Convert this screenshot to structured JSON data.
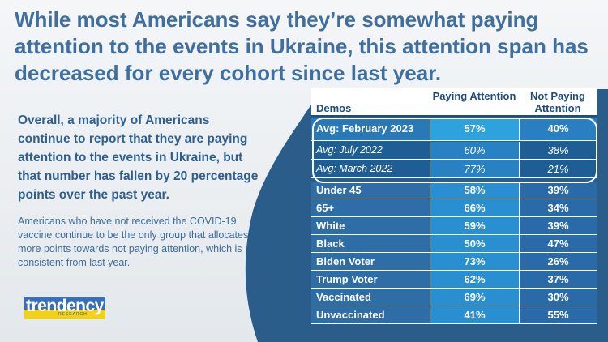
{
  "title": "While most Americans say they’re somewhat paying attention to the events in Ukraine, this attention span has decreased for every cohort since last year.",
  "lead": "Overall, a majority of Americans continue to report that they are paying attention to the events in Ukraine, but that number has fallen by 20 percentage points over the past year.",
  "note": "Americans who have not received the COVID-19 vaccine continue to be the only group that allocates more points towards not paying attention, which is consistent from last year.",
  "logo": {
    "word": "trendency",
    "sub": "RESEARCH"
  },
  "colors": {
    "title": "#3e6f9e",
    "panel": "#2a5d8a",
    "logo_blue": "#3a6fb6",
    "logo_yellow": "#f2d11b"
  },
  "table": {
    "headers": {
      "demos": "Demos",
      "paying": "Paying Attention",
      "not_paying": "Not Paying Attention"
    },
    "rows": [
      {
        "demo": "Avg: February 2023",
        "paying": "57%",
        "not_paying": "40%"
      },
      {
        "demo": "Avg: July 2022",
        "paying": "60%",
        "not_paying": "38%"
      },
      {
        "demo": "Avg: March 2022",
        "paying": "77%",
        "not_paying": "21%"
      },
      {
        "demo": "Under 45",
        "paying": "58%",
        "not_paying": "39%"
      },
      {
        "demo": "65+",
        "paying": "66%",
        "not_paying": "34%"
      },
      {
        "demo": "White",
        "paying": "59%",
        "not_paying": "39%"
      },
      {
        "demo": "Black",
        "paying": "50%",
        "not_paying": "47%"
      },
      {
        "demo": "Biden Voter",
        "paying": "73%",
        "not_paying": "26%"
      },
      {
        "demo": "Trump Voter",
        "paying": "62%",
        "not_paying": "37%"
      },
      {
        "demo": "Vaccinated",
        "paying": "69%",
        "not_paying": "30%"
      },
      {
        "demo": "Unvaccinated",
        "paying": "41%",
        "not_paying": "55%"
      }
    ]
  }
}
